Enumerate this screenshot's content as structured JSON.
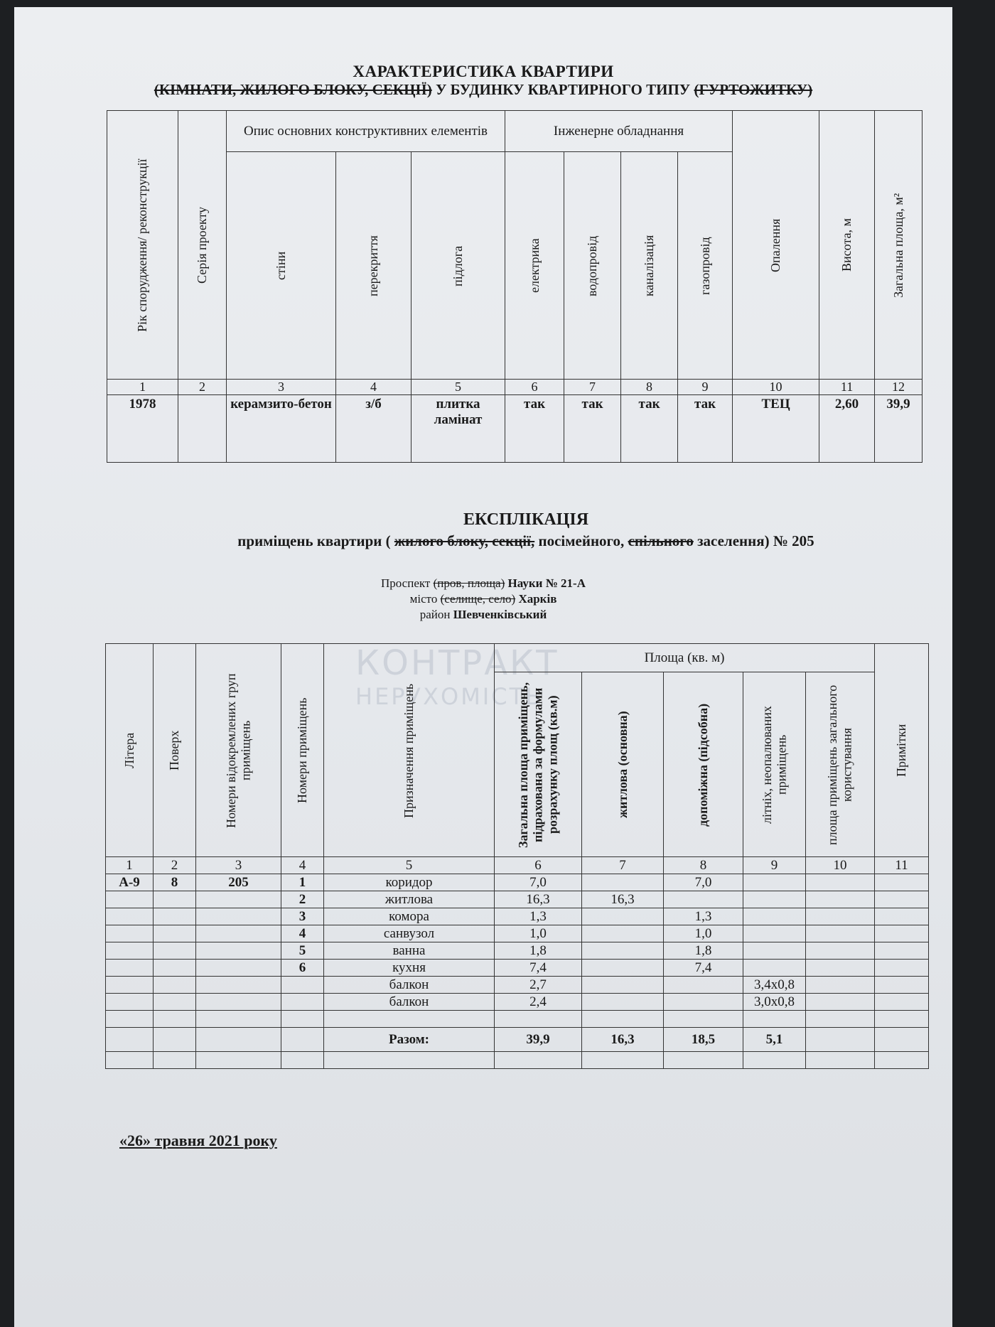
{
  "header": {
    "title": "ХАРАКТЕРИСТИКА КВАРТИРИ",
    "subtitle": [
      {
        "text": "(КІМНАТИ, ЖИЛОГО БЛОКУ, СЕКЦІЇ)",
        "struck": true
      },
      {
        "text": "У БУДИНКУ КВАРТИРНОГО ТИПУ",
        "struck": false
      },
      {
        "text": "(ГУРТОЖИТКУ)",
        "struck": true
      }
    ]
  },
  "characteristics": {
    "columns": [
      {
        "label": "Рік спорудження/ реконструкції"
      },
      {
        "label": "Серія проекту"
      },
      {
        "label": "Опис основних конструктивних елементів",
        "sub": [
          "стіни",
          "перекриття",
          "підлога"
        ]
      },
      {
        "label": "Інженерне обладнання",
        "sub": [
          "електрика",
          "водопровід",
          "каналізація",
          "газопровід"
        ]
      },
      {
        "label": "Опалення"
      },
      {
        "label": "Висота, м"
      },
      {
        "label": "Загальна площа, м²"
      }
    ],
    "numbers": [
      "1",
      "2",
      "3",
      "4",
      "5",
      "6",
      "7",
      "8",
      "9",
      "10",
      "11",
      "12"
    ],
    "row": [
      "1978",
      null,
      "керамзито-бетон",
      "з/б",
      "плитка ламінат",
      "так",
      "так",
      "так",
      "так",
      "ТЕЦ",
      "2,60",
      "39,9"
    ]
  },
  "explication": {
    "title": "ЕКСПЛІКАЦІЯ",
    "subtitle": [
      {
        "text": "приміщень квартири (",
        "struck": false
      },
      {
        "text": "жилого блоку, секції,",
        "struck": true
      },
      {
        "text": " посімейного, ",
        "struck": false
      },
      {
        "text": "спільного",
        "struck": true
      },
      {
        "text": " заселення) № 205",
        "struck": false
      }
    ],
    "address": [
      {
        "label": "Проспект",
        "struck": "(пров, площа)",
        "value": "Науки № 21-А"
      },
      {
        "label": "місто",
        "struck": "(селище, село)",
        "value": "Харків"
      },
      {
        "label": "район",
        "value": "Шевченківський"
      }
    ]
  },
  "rooms": {
    "columns": [
      {
        "label": "Літера"
      },
      {
        "label": "Поверх"
      },
      {
        "label": "Номери відокремлених груп приміщень"
      },
      {
        "label": "Номери приміщень"
      },
      {
        "label": "Призначення приміщень"
      },
      {
        "label": "Площа (кв. м)",
        "sub": [
          "Загальна площа приміщень, підрахована за формулами розрахунку площ (кв.м)",
          "житлова (основна)",
          "допоміжна (підсобна)",
          "літніх, неопалюваних приміщень",
          "площа приміщень загального користування"
        ]
      },
      {
        "label": "Примітки"
      }
    ],
    "numbers": [
      "1",
      "2",
      "3",
      "4",
      "5",
      "6",
      "7",
      "8",
      "9",
      "10",
      "11"
    ],
    "rows": [
      [
        "А-9",
        "8",
        "205",
        "1",
        "коридор",
        "7,0",
        null,
        "7,0",
        null,
        null,
        null
      ],
      [
        null,
        null,
        null,
        "2",
        "житлова",
        "16,3",
        "16,3",
        null,
        null,
        null,
        null
      ],
      [
        null,
        null,
        null,
        "3",
        "комора",
        "1,3",
        null,
        "1,3",
        null,
        null,
        null
      ],
      [
        null,
        null,
        null,
        "4",
        "санвузол",
        "1,0",
        null,
        "1,0",
        null,
        null,
        null
      ],
      [
        null,
        null,
        null,
        "5",
        "ванна",
        "1,8",
        null,
        "1,8",
        null,
        null,
        null
      ],
      [
        null,
        null,
        null,
        "6",
        "кухня",
        "7,4",
        null,
        "7,4",
        null,
        null,
        null
      ],
      [
        null,
        null,
        null,
        null,
        "балкон",
        "2,7",
        null,
        null,
        "3,4х0,8",
        null,
        null
      ],
      [
        null,
        null,
        null,
        null,
        "балкон",
        "2,4",
        null,
        null,
        "3,0х0,8",
        null,
        null
      ]
    ],
    "total": {
      "label": "Разом:",
      "values": [
        "39,9",
        "16,3",
        "18,5",
        "5,1"
      ]
    }
  },
  "date": "«26» травня 2021 року",
  "watermark": {
    "line1": "КОНТРАКТ",
    "line2": "НЕРУХОМІСТЬ"
  }
}
